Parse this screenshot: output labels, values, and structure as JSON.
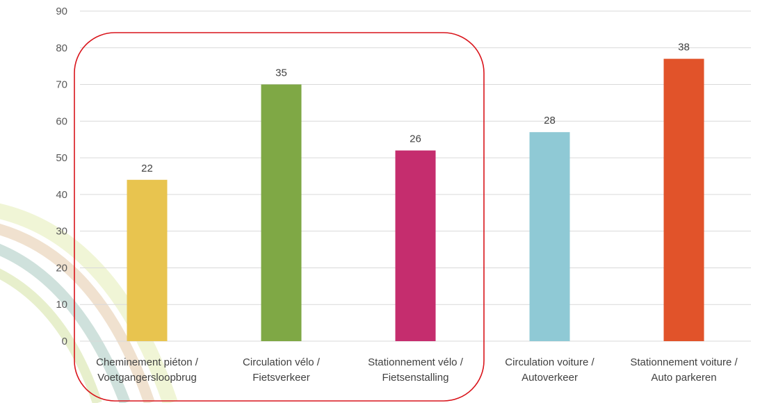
{
  "chart_data": {
    "type": "bar",
    "categories": [
      [
        "Cheminement piéton /",
        "Voetgangersloopbrug"
      ],
      [
        "Circulation vélo /",
        "Fietsverkeer"
      ],
      [
        "Stationnement vélo /",
        "Fietsenstalling"
      ],
      [
        "Circulation voiture /",
        "Autoverkeer"
      ],
      [
        "Stationnement voiture /",
        "Auto parkeren"
      ]
    ],
    "values": [
      44,
      70,
      52,
      57,
      77
    ],
    "data_labels": [
      "22",
      "35",
      "26",
      "28",
      "38"
    ],
    "colors": [
      "#E8C44F",
      "#7FA845",
      "#C52D6E",
      "#8FC9D5",
      "#E1532A"
    ],
    "ylim": [
      0,
      90
    ],
    "yticks": [
      0,
      10,
      20,
      30,
      40,
      50,
      60,
      70,
      80,
      90
    ],
    "grid": true,
    "grid_color": "#D9D9D9",
    "highlight_box": {
      "categories": [
        0,
        1,
        2
      ],
      "color": "#D9141B"
    },
    "title": "",
    "xlabel": "",
    "ylabel": ""
  }
}
